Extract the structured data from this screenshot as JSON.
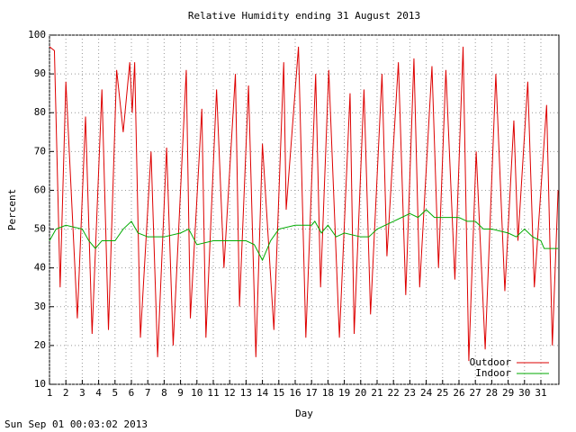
{
  "chart_data": {
    "type": "line",
    "title": "Relative Humidity ending 31 August 2013",
    "x_label": "Day",
    "y_label": "Percent",
    "footer": "Sun Sep 01 00:03:02 2013",
    "xlim": [
      1,
      32.1
    ],
    "ylim": [
      10,
      100
    ],
    "xticks": [
      1,
      2,
      3,
      4,
      5,
      6,
      7,
      8,
      9,
      10,
      11,
      12,
      13,
      14,
      15,
      16,
      17,
      18,
      19,
      20,
      21,
      22,
      23,
      24,
      25,
      26,
      27,
      28,
      29,
      30,
      31
    ],
    "yticks": [
      10,
      20,
      30,
      40,
      50,
      60,
      70,
      80,
      90,
      100
    ],
    "grid": true,
    "legend": "bottom-right",
    "series": [
      {
        "name": "Outdoor",
        "color": "#dd0000",
        "x": [
          1,
          1.3,
          1.65,
          2.0,
          2.15,
          2.7,
          3.2,
          3.6,
          4.2,
          4.6,
          5.1,
          5.5,
          5.9,
          6.05,
          6.2,
          6.55,
          7.2,
          7.6,
          8.15,
          8.55,
          9.35,
          9.6,
          10.3,
          10.55,
          11.2,
          11.65,
          12.35,
          12.6,
          13.15,
          13.6,
          14.0,
          14.7,
          15.3,
          15.45,
          16.2,
          16.65,
          17.25,
          17.55,
          18.05,
          18.7,
          19.35,
          19.6,
          20.2,
          20.6,
          21.3,
          21.6,
          22.3,
          22.75,
          23.25,
          23.6,
          24.35,
          24.75,
          25.2,
          25.75,
          26.25,
          26.6,
          27.05,
          27.6,
          28.25,
          28.8,
          29.35,
          29.6,
          30.2,
          30.6,
          31.35,
          31.7,
          32.05
        ],
        "values": [
          97,
          96,
          35,
          88,
          75,
          27,
          79,
          23,
          86,
          24,
          91,
          75,
          93,
          80,
          93,
          22,
          70,
          17,
          71,
          20,
          91,
          27,
          81,
          22,
          86,
          40,
          90,
          30,
          87,
          17,
          72,
          24,
          93,
          55,
          97,
          22,
          90,
          35,
          91,
          22,
          85,
          23,
          86,
          28,
          90,
          43,
          93,
          33,
          94,
          35,
          92,
          40,
          91,
          37,
          97,
          16,
          70,
          19,
          90,
          34,
          78,
          47,
          88,
          35,
          82,
          20,
          60
        ]
      },
      {
        "name": "Indoor",
        "color": "#00aa00",
        "x": [
          1,
          1.4,
          2,
          3,
          3.4,
          3.8,
          4.2,
          5,
          5.5,
          6,
          6.4,
          7,
          8,
          9,
          9.5,
          10,
          11,
          12,
          13,
          13.5,
          14,
          14.5,
          15,
          16,
          17,
          17.2,
          17.6,
          18,
          18.5,
          19,
          20,
          20.5,
          21,
          22,
          22.5,
          23,
          23.5,
          24,
          24.5,
          25,
          26,
          26.5,
          27,
          27.5,
          28,
          29,
          29.5,
          30,
          30.5,
          31,
          31.2,
          32.05
        ],
        "values": [
          47,
          50,
          51,
          50,
          47,
          45,
          47,
          47,
          50,
          52,
          49,
          48,
          48,
          49,
          50,
          46,
          47,
          47,
          47,
          46,
          42,
          47,
          50,
          51,
          51,
          52,
          49,
          51,
          48,
          49,
          48,
          48,
          50,
          52,
          53,
          54,
          53,
          55,
          53,
          53,
          53,
          52,
          52,
          50,
          50,
          49,
          48,
          50,
          48,
          47,
          45,
          45
        ]
      }
    ]
  }
}
